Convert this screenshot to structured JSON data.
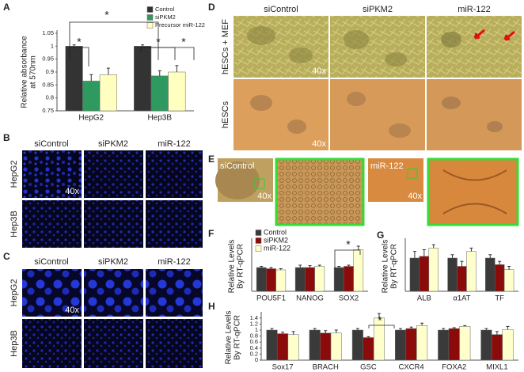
{
  "figure": {
    "panel_labels": [
      "A",
      "B",
      "C",
      "D",
      "E",
      "F",
      "G",
      "H"
    ],
    "B": {
      "columns": [
        "siControl",
        "siPKM2",
        "miR-122"
      ],
      "rows": [
        "HepG2",
        "Hep3B"
      ],
      "magnification": "40x"
    },
    "C": {
      "columns": [
        "siControl",
        "siPKM2",
        "miR-122"
      ],
      "rows": [
        "HepG2",
        "Hep3B"
      ],
      "magnification": "40x"
    },
    "D": {
      "columns": [
        "siControl",
        "siPKM2",
        "miR-122"
      ],
      "rows": [
        "hESCs + MEF",
        "hESCs"
      ],
      "magnification": "40x"
    },
    "E": {
      "labels": [
        "siControl",
        "miR-122"
      ],
      "magnification": "40x"
    }
  },
  "chart_data": [
    {
      "type": "bar",
      "ylabel": [
        "Relative absorbance",
        "at 570nm"
      ],
      "categories": [
        "HepG2",
        "Hep3B"
      ],
      "series": [
        {
          "name": "Control",
          "color": "#333333",
          "values": [
            1,
            1
          ],
          "errors": [
            0.005,
            0.005
          ]
        },
        {
          "name": "siPKM2",
          "color": "#2f9a5f",
          "values": [
            0.865,
            0.885
          ],
          "errors": [
            0.025,
            0.02
          ]
        },
        {
          "name": "Precursor miR-122",
          "color": "#ffffc0",
          "values": [
            0.89,
            0.9
          ],
          "errors": [
            0.025,
            0.025
          ]
        }
      ],
      "ylim": [
        0.75,
        1.05
      ],
      "yticks": [
        0.75,
        0.8,
        0.85,
        0.9,
        0.95,
        1,
        1.05
      ],
      "annotations": [
        "*",
        "*",
        "*",
        "*"
      ],
      "legend": "top-right"
    },
    {
      "type": "bar",
      "ylabel": [
        "Relative Levels",
        "By RT-qPCR"
      ],
      "categories": [
        "POU5F1",
        "NANOG",
        "SOX2"
      ],
      "series": [
        {
          "name": "Control",
          "color": "#3a3a3a",
          "values": [
            1,
            1,
            1
          ],
          "errors": [
            0.05,
            0.1,
            0.05
          ]
        },
        {
          "name": "siPKM2",
          "color": "#8b0a0a",
          "values": [
            0.95,
            1,
            1.05
          ],
          "errors": [
            0.05,
            0.08,
            0.05
          ]
        },
        {
          "name": "miR-122",
          "color": "#ffffcc",
          "values": [
            0.9,
            1.05,
            1.75
          ],
          "errors": [
            0.05,
            0.05,
            0.15
          ]
        }
      ],
      "ylim": [
        0,
        2.1
      ],
      "annotations": [
        "*"
      ],
      "legend": "top-left"
    },
    {
      "type": "bar",
      "ylabel": [
        "Relative Levels",
        "By RT-qPCR"
      ],
      "categories": [
        "ALB",
        "α1AT",
        "TF"
      ],
      "series": [
        {
          "color": "#3a3a3a",
          "values": [
            1,
            1,
            1
          ],
          "errors": [
            0.2,
            0.1,
            0.1
          ]
        },
        {
          "color": "#8b0a0a",
          "values": [
            1.05,
            0.75,
            0.8
          ],
          "errors": [
            0.2,
            0.15,
            0.1
          ]
        },
        {
          "color": "#ffffcc",
          "values": [
            1.3,
            1.2,
            0.65
          ],
          "errors": [
            0.1,
            0.1,
            0.1
          ]
        }
      ],
      "ylim": [
        0,
        1.5
      ]
    },
    {
      "type": "bar",
      "ylabel": [
        "Relative Levels",
        "By RT-qPCR"
      ],
      "categories": [
        "Sox17",
        "BRACH",
        "GSC",
        "CXCR4",
        "FOXA2",
        "MIXL1"
      ],
      "series": [
        {
          "color": "#3a3a3a",
          "values": [
            1,
            1,
            1,
            1,
            1,
            1
          ],
          "errors": [
            0.05,
            0.05,
            0.05,
            0.05,
            0.05,
            0.05
          ]
        },
        {
          "color": "#8b0a0a",
          "values": [
            0.88,
            0.9,
            0.75,
            1.05,
            1.05,
            0.85
          ],
          "errors": [
            0.05,
            0.08,
            0.03,
            0.05,
            0.03,
            0.1
          ]
        },
        {
          "color": "#ffffcc",
          "values": [
            0.85,
            0.9,
            1.4,
            1.15,
            1.12,
            1.02
          ],
          "errors": [
            0.1,
            0.1,
            0.15,
            0.08,
            0.03,
            0.1
          ]
        }
      ],
      "ylim": [
        0,
        1.5
      ],
      "yticks": [
        0,
        0.2,
        0.4,
        0.6,
        0.8,
        1,
        1.2,
        1.4
      ],
      "annotations": [
        "*"
      ]
    }
  ]
}
